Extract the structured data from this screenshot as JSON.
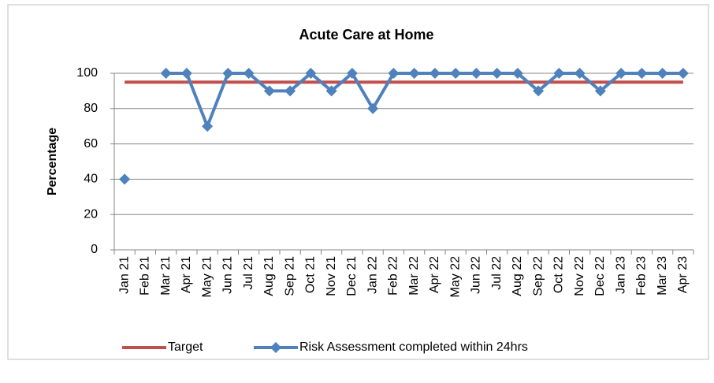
{
  "chart_data": {
    "type": "line",
    "title": "Acute Care at Home",
    "ylabel": "Percentage",
    "categories": [
      "Jan 21",
      "Feb 21",
      "Mar 21",
      "Apr 21",
      "May 21",
      "Jun 21",
      "Jul 21",
      "Aug 21",
      "Sep 21",
      "Oct 21",
      "Nov 21",
      "Dec 21",
      "Jan 22",
      "Feb 22",
      "Mar 22",
      "Apr 22",
      "May 22",
      "Jun 22",
      "Jul 22",
      "Aug 22",
      "Sep 22",
      "Oct 22",
      "Nov 22",
      "Dec 22",
      "Jan 23",
      "Feb 23",
      "Mar 23",
      "Apr 23"
    ],
    "series": [
      {
        "name": "Target",
        "color": "#c0504d",
        "marker": false,
        "values": [
          95,
          95,
          95,
          95,
          95,
          95,
          95,
          95,
          95,
          95,
          95,
          95,
          95,
          95,
          95,
          95,
          95,
          95,
          95,
          95,
          95,
          95,
          95,
          95,
          95,
          95,
          95,
          95
        ]
      },
      {
        "name": "Risk Assessment completed within 24hrs",
        "color": "#4f81bd",
        "marker": true,
        "values": [
          40,
          null,
          100,
          100,
          70,
          100,
          100,
          90,
          90,
          100,
          90,
          100,
          80,
          100,
          100,
          100,
          100,
          100,
          100,
          100,
          90,
          100,
          100,
          90,
          100,
          100,
          100,
          100
        ]
      }
    ],
    "ylim": [
      0,
      100
    ],
    "yticks": [
      0,
      20,
      40,
      60,
      80,
      100
    ],
    "grid": true,
    "legend": "bottom"
  }
}
